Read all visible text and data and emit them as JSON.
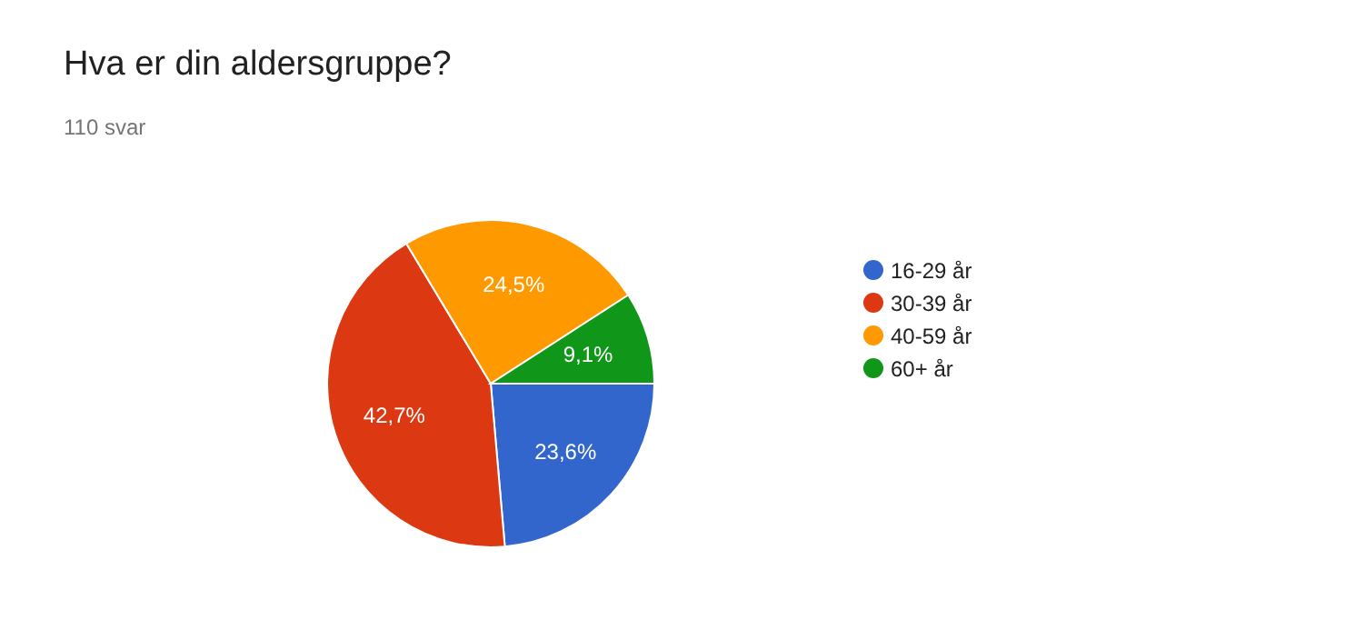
{
  "chart_data": {
    "type": "pie",
    "title": "Hva er din aldersgruppe?",
    "subtitle": "110 svar",
    "categories": [
      "16-29 år",
      "30-39 år",
      "40-59 år",
      "60+ år"
    ],
    "values": [
      23.6,
      42.7,
      24.5,
      9.1
    ],
    "value_labels": [
      "23,6%",
      "42,7%",
      "24,5%",
      "9,1%"
    ],
    "colors": [
      "#3366cc",
      "#dc3912",
      "#ff9900",
      "#109618"
    ],
    "legend": "right"
  }
}
